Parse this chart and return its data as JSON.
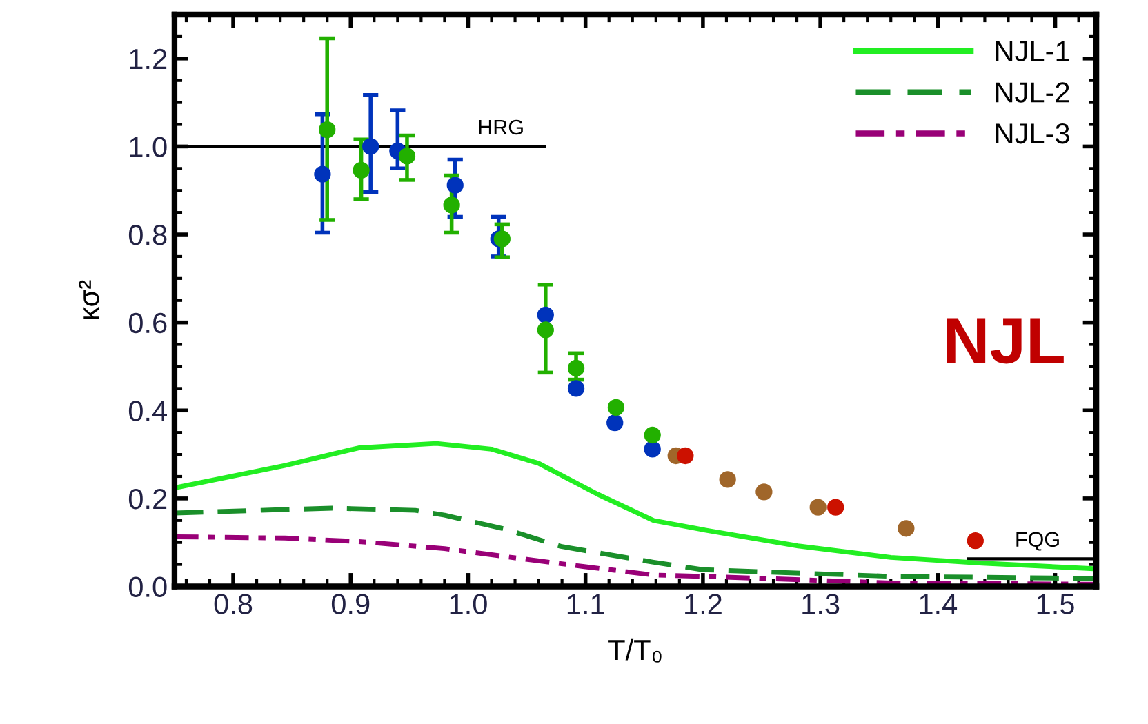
{
  "chart_data": {
    "type": "scatter",
    "xlabel": "T/T₀",
    "ylabel": "κσ²",
    "xlim": [
      0.75,
      1.535
    ],
    "ylim": [
      0,
      1.3
    ],
    "xticks": [
      0.8,
      0.9,
      {
        "value": 1,
        "label": "1.0"
      },
      1.1,
      1.2,
      1.3,
      1.4,
      1.5
    ],
    "yticks": [
      {
        "value": 0,
        "label": "0.0"
      },
      0.2,
      0.4,
      0.6,
      0.8,
      {
        "value": 1,
        "label": "1.0"
      },
      1.2
    ],
    "grid": false,
    "legend": "top right",
    "annotations": [
      {
        "text": "HRG",
        "x": 1.028,
        "y": 1.0
      },
      {
        "text": "FQG",
        "x": 1.485,
        "y": 0.063
      },
      "NJL"
    ],
    "series": [
      {
        "type": "line",
        "color": "#000000",
        "line_style": "solid",
        "x": [
          0.75,
          1.065
        ],
        "values": [
          1.0,
          1.0
        ]
      },
      {
        "type": "line",
        "color": "#000000",
        "line_style": "solid",
        "x": [
          1.426,
          1.535
        ],
        "values": [
          0.063,
          0.063
        ]
      },
      {
        "name": "NJL-1",
        "type": "line",
        "color": "#22ee22",
        "line_style": "solid",
        "x": [
          0.75,
          0.844,
          0.907,
          0.973,
          1.02,
          1.06,
          1.11,
          1.158,
          1.202,
          1.281,
          1.36,
          1.438,
          1.535
        ],
        "values": [
          0.224,
          0.275,
          0.315,
          0.325,
          0.312,
          0.28,
          0.21,
          0.15,
          0.128,
          0.092,
          0.066,
          0.053,
          0.04
        ]
      },
      {
        "name": "NJL-2",
        "type": "line",
        "color": "#1a8f2a",
        "line_style": "dashed",
        "x": [
          0.75,
          0.884,
          0.955,
          0.98,
          1.032,
          1.079,
          1.158,
          1.2,
          1.36,
          1.535
        ],
        "values": [
          0.167,
          0.178,
          0.173,
          0.162,
          0.13,
          0.091,
          0.055,
          0.038,
          0.023,
          0.018
        ]
      },
      {
        "name": "NJL-3",
        "type": "line",
        "color": "#990077",
        "line_style": "dashdot",
        "x": [
          0.75,
          0.844,
          0.907,
          0.98,
          1.04,
          1.099,
          1.158,
          1.2,
          1.36,
          1.535
        ],
        "values": [
          0.113,
          0.11,
          0.102,
          0.086,
          0.065,
          0.045,
          0.026,
          0.023,
          0.008,
          0.005
        ]
      },
      {
        "marker": "circle",
        "color": "#0033bb",
        "x": [
          0.876,
          0.917,
          0.94,
          0.989,
          1.026,
          1.066,
          1.092,
          1.125,
          1.157
        ],
        "values": [
          0.937,
          1.0,
          0.99,
          0.912,
          0.79,
          0.617,
          0.45,
          0.372,
          0.312
        ],
        "errors": [
          [
            0.804,
            1.073
          ],
          [
            0.896,
            1.117
          ],
          [
            0.95,
            1.082
          ],
          [
            0.84,
            0.97
          ],
          [
            0.75,
            0.84
          ],
          null,
          null,
          null,
          null
        ]
      },
      {
        "marker": "circle",
        "color": "#22b000",
        "x": [
          0.88,
          0.909,
          0.948,
          0.986,
          1.029,
          1.066,
          1.092,
          1.126,
          1.157
        ],
        "values": [
          1.038,
          0.946,
          0.978,
          0.867,
          0.79,
          0.583,
          0.496,
          0.407,
          0.344
        ],
        "errors": [
          [
            0.833,
            1.246
          ],
          [
            0.88,
            1.016
          ],
          [
            0.924,
            1.025
          ],
          [
            0.804,
            0.934
          ],
          [
            0.748,
            0.823
          ],
          [
            0.486,
            0.686
          ],
          [
            0.47,
            0.53
          ],
          null,
          null
        ]
      },
      {
        "marker": "circle",
        "color": "#a0662a",
        "x": [
          1.177,
          1.221,
          1.252,
          1.298,
          1.373
        ],
        "values": [
          0.297,
          0.243,
          0.215,
          0.18,
          0.132
        ]
      },
      {
        "marker": "circle",
        "color": "#cc1100",
        "x": [
          1.185,
          1.313,
          1.432
        ],
        "values": [
          0.297,
          0.18,
          0.104
        ]
      }
    ]
  }
}
